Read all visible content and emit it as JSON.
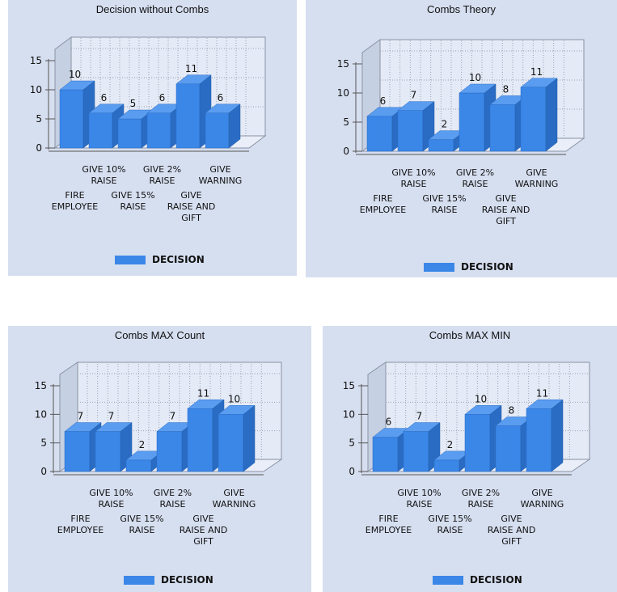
{
  "chart_data": [
    {
      "type": "bar",
      "title": "Decision without Combs",
      "categories": [
        "FIRE EMPLOYEE",
        "GIVE 10% RAISE",
        "GIVE 15% RAISE",
        "GIVE 2% RAISE",
        "GIVE RAISE AND GIFT",
        "GIVE WARNING"
      ],
      "series": [
        {
          "name": "DECISION",
          "values": [
            10,
            6,
            5,
            6,
            11,
            6
          ]
        }
      ],
      "ylim": [
        0,
        15
      ],
      "yticks": [
        0,
        5,
        10,
        15
      ],
      "grid": true,
      "legend": "bottom",
      "colors": {
        "bar": "#3b87e8",
        "panel": "#d6dff0"
      }
    },
    {
      "type": "bar",
      "title": "Combs Theory",
      "categories": [
        "FIRE EMPLOYEE",
        "GIVE 10% RAISE",
        "GIVE 15% RAISE",
        "GIVE 2% RAISE",
        "GIVE RAISE AND GIFT",
        "GIVE WARNING"
      ],
      "series": [
        {
          "name": "DECISION",
          "values": [
            6,
            7,
            2,
            10,
            8,
            11
          ]
        }
      ],
      "ylim": [
        0,
        15
      ],
      "yticks": [
        0,
        5,
        10,
        15
      ],
      "grid": true,
      "legend": "bottom",
      "colors": {
        "bar": "#3b87e8",
        "panel": "#d6dff0"
      }
    },
    {
      "type": "bar",
      "title": "Combs MAX Count",
      "categories": [
        "FIRE EMPLOYEE",
        "GIVE 10% RAISE",
        "GIVE 15% RAISE",
        "GIVE 2% RAISE",
        "GIVE RAISE AND GIFT",
        "GIVE WARNING"
      ],
      "series": [
        {
          "name": "DECISION",
          "values": [
            7,
            7,
            2,
            7,
            11,
            10
          ]
        }
      ],
      "ylim": [
        0,
        15
      ],
      "yticks": [
        0,
        5,
        10,
        15
      ],
      "grid": true,
      "legend": "bottom",
      "colors": {
        "bar": "#3b87e8",
        "panel": "#d6dff0"
      }
    },
    {
      "type": "bar",
      "title": "Combs MAX MIN",
      "categories": [
        "FIRE EMPLOYEE",
        "GIVE 10% RAISE",
        "GIVE 15% RAISE",
        "GIVE 2% RAISE",
        "GIVE RAISE AND GIFT",
        "GIVE WARNING"
      ],
      "series": [
        {
          "name": "DECISION",
          "values": [
            6,
            7,
            2,
            10,
            8,
            11
          ]
        }
      ],
      "ylim": [
        0,
        15
      ],
      "yticks": [
        0,
        5,
        10,
        15
      ],
      "grid": true,
      "legend": "bottom",
      "colors": {
        "bar": "#3b87e8",
        "panel": "#d6dff0"
      }
    }
  ]
}
